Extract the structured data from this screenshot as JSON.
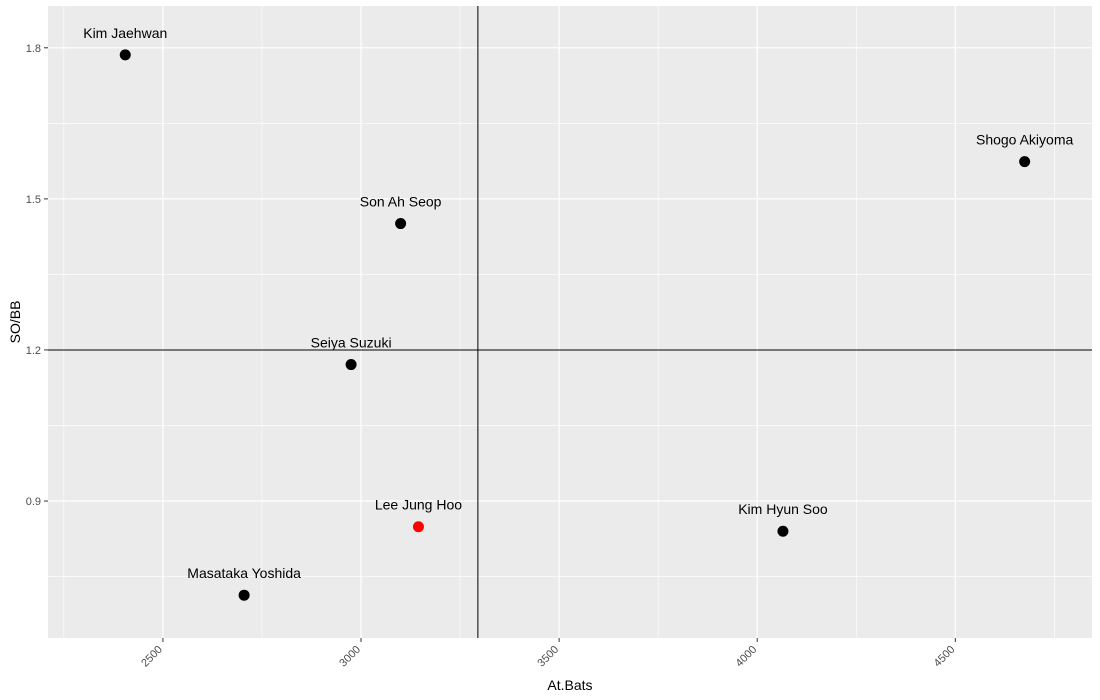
{
  "chart_data": {
    "type": "scatter",
    "xlabel": "At.Bats",
    "ylabel": "SO/BB",
    "xlim": [
      2210,
      4845
    ],
    "ylim": [
      0.628,
      1.883
    ],
    "x_ticks": [
      2500,
      3000,
      3500,
      4000,
      4500
    ],
    "y_ticks": [
      0.9,
      1.2,
      1.5,
      1.8
    ],
    "x_tick_labels": [
      "2500",
      "3000",
      "3500",
      "4000",
      "4500"
    ],
    "y_tick_labels": [
      "0.9",
      "1.2",
      "1.5",
      "1.8"
    ],
    "reference_lines": {
      "x": 3295,
      "y": 1.2
    },
    "grid": true,
    "background_color": "#ebebeb",
    "grid_color": "#ffffff",
    "points": [
      {
        "label": "Kim Jaehwan",
        "x": 2405,
        "y": 1.786,
        "color": "#000000"
      },
      {
        "label": "Shogo Akiyoma",
        "x": 4675,
        "y": 1.574,
        "color": "#000000"
      },
      {
        "label": "Son Ah Seop",
        "x": 3100,
        "y": 1.451,
        "color": "#000000"
      },
      {
        "label": "Seiya Suzuki",
        "x": 2975,
        "y": 1.171,
        "color": "#000000"
      },
      {
        "label": "Lee Jung Hoo",
        "x": 3145,
        "y": 0.849,
        "color": "#ff0000"
      },
      {
        "label": "Kim Hyun Soo",
        "x": 4065,
        "y": 0.84,
        "color": "#000000"
      },
      {
        "label": "Masataka Yoshida",
        "x": 2705,
        "y": 0.713,
        "color": "#000000"
      }
    ]
  }
}
